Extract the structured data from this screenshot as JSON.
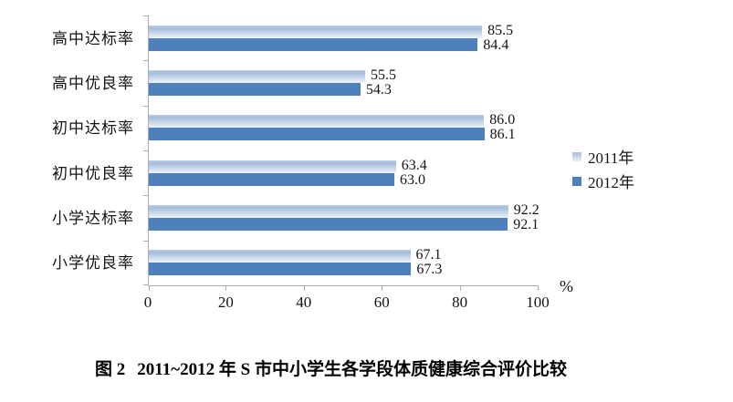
{
  "chart_data": {
    "type": "bar",
    "orientation": "horizontal",
    "title": "",
    "categories": [
      "高中达标率",
      "高中优良率",
      "初中达标率",
      "初中优良率",
      "小学达标率",
      "小学优良率"
    ],
    "series": [
      {
        "name": "2011年",
        "values": [
          85.5,
          55.5,
          86.0,
          63.4,
          92.2,
          67.1
        ],
        "labels": [
          "85.5",
          "55.5",
          "86.0",
          "63.4",
          "92.2",
          "67.1"
        ]
      },
      {
        "name": "2012年",
        "values": [
          84.4,
          54.3,
          86.1,
          63.0,
          92.1,
          67.3
        ],
        "labels": [
          "84.4",
          "54.3",
          "86.1",
          "63.0",
          "92.1",
          "67.3"
        ]
      }
    ],
    "xlim": [
      0,
      100
    ],
    "xticks": [
      "0",
      "20",
      "40",
      "60",
      "80",
      "100"
    ],
    "x_unit": "%",
    "grid": false,
    "legend_position": "right",
    "value_labels_shown": true
  },
  "caption": {
    "prefix": "图 2",
    "text": "2011~2012 年 S 市中小学生各学段体质健康综合评价比较"
  },
  "colors": {
    "bar_2011_top": "#a4bcdc",
    "bar_2011_bottom": "#eef3f9",
    "bar_2012": "#4e80bc",
    "axis": "#a8aeb6",
    "text": "#141414"
  }
}
